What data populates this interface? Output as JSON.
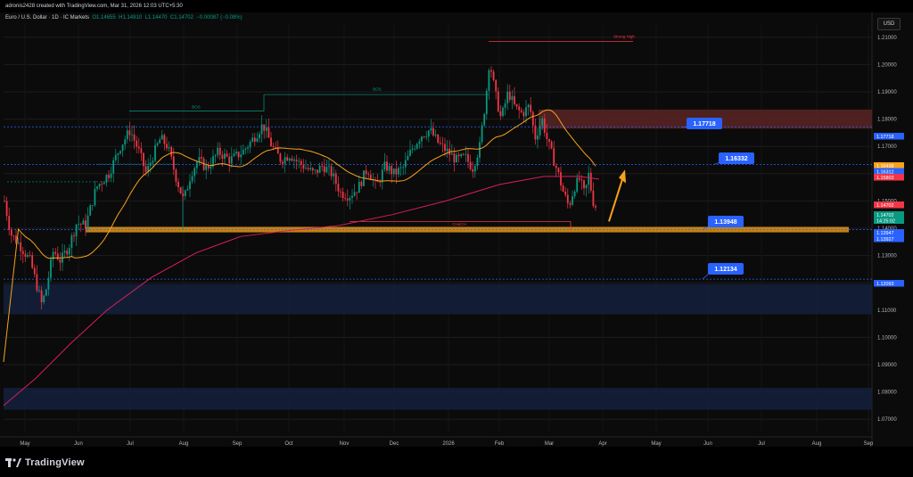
{
  "header": {
    "attribution": "adronis2428 created with TradingView.com, Mar 31, 2026 12:03 UTC+5:30",
    "currency_button": "USD"
  },
  "footer": {
    "brand": "TradingView"
  },
  "chart_data": {
    "type": "candlestick",
    "title": "Euro / U.S. Dollar · 1D · IC Markets",
    "ohlc_legend": {
      "open_label": "O",
      "open": "1.14655",
      "high_label": "H",
      "high": "1.14910",
      "low_label": "L",
      "low": "1.14470",
      "close_label": "C",
      "close": "1.14702",
      "change": "−0.00087 (−0.08%)"
    },
    "y_ticks": [
      "1.21000",
      "1.20000",
      "1.19000",
      "1.18000",
      "1.17000",
      "1.16000",
      "1.15000",
      "1.14000",
      "1.13000",
      "1.12000",
      "1.11000",
      "1.10000",
      "1.09000",
      "1.08000",
      "1.07000"
    ],
    "y_tick_values": [
      1.21,
      1.2,
      1.19,
      1.18,
      1.17,
      1.16,
      1.15,
      1.14,
      1.13,
      1.12,
      1.11,
      1.1,
      1.09,
      1.08,
      1.07
    ],
    "ylim": [
      1.065,
      1.218
    ],
    "x_ticks": [
      "May",
      "Jun",
      "Jul",
      "Aug",
      "Sep",
      "Oct",
      "Nov",
      "Dec",
      "2026",
      "Feb",
      "Mar",
      "Apr",
      "May",
      "Jun",
      "Jul",
      "Aug",
      "Sep"
    ],
    "price_tags": [
      {
        "value": 1.16438,
        "label": "1.16438",
        "color": "#f7a21b"
      },
      {
        "value": 1.16312,
        "label": "1.16312",
        "color": "#2962ff"
      },
      {
        "value": 1.15803,
        "label": "1.15803",
        "color": "#f23645"
      },
      {
        "value": 1.14702,
        "label": "1.14702",
        "color": "#f23645"
      },
      {
        "value": 1.14702,
        "label": "1.14702",
        "color": "#089981"
      },
      {
        "value": 1.14702,
        "label": "14:25:02",
        "color": "#089981"
      },
      {
        "value": 1.13947,
        "label": "1.13947",
        "color": "#2962ff"
      },
      {
        "value": 1.13927,
        "label": "1.13927",
        "color": "#2962ff"
      },
      {
        "value": 1.17718,
        "label": "1.17718",
        "color": "#2962ff"
      },
      {
        "value": 1.12093,
        "label": "1.12093",
        "color": "#2962ff"
      }
    ],
    "callouts": [
      {
        "label": "1.17718",
        "value": 1.17718
      },
      {
        "label": "1.16332",
        "value": 1.16332
      },
      {
        "label": "1.13948",
        "value": 1.13948
      },
      {
        "label": "1.12134",
        "value": 1.12134
      }
    ],
    "zones": [
      {
        "name": "supply",
        "y1": 1.1765,
        "y2": 1.1835,
        "color": "#5a2424"
      },
      {
        "name": "support",
        "y1": 1.1385,
        "y2": 1.1405,
        "color": "#d98e0f"
      },
      {
        "name": "demand-1",
        "y1": 1.1085,
        "y2": 1.1195,
        "color": "#14213d"
      },
      {
        "name": "demand-2",
        "y1": 1.0735,
        "y2": 1.0815,
        "color": "#14213d"
      }
    ],
    "annotations": [
      {
        "text": "BOS"
      },
      {
        "text": "BOS"
      },
      {
        "text": "CHoCH"
      },
      {
        "text": "Strong High"
      }
    ],
    "series": [
      {
        "name": "",
        "color": "#f7a21b"
      },
      {
        "name": "",
        "color": "#d81e5b"
      }
    ],
    "colors": {
      "up": "#089981",
      "down": "#f23645",
      "grid": "#1c1c1c"
    }
  }
}
